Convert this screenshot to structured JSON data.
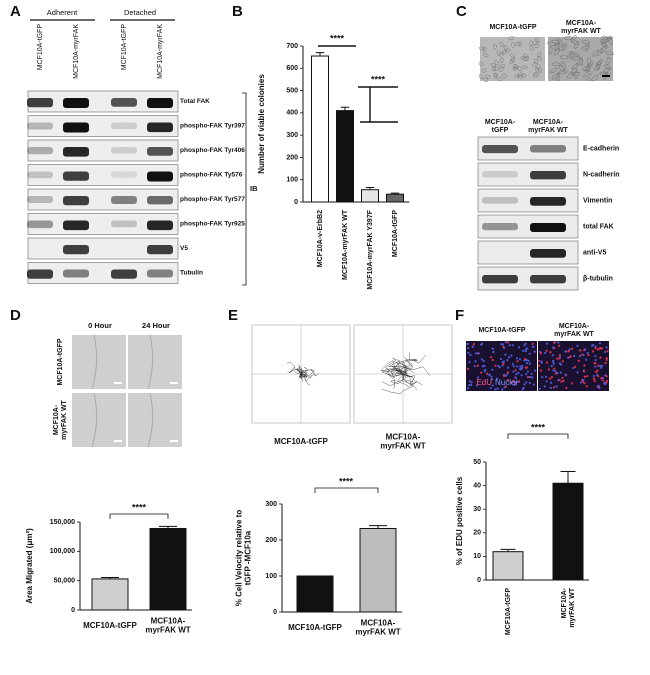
{
  "panel_labels": [
    "A",
    "B",
    "C",
    "D",
    "E",
    "F"
  ],
  "panel_a": {
    "groups": [
      "Adherent",
      "Detached"
    ],
    "lanes": [
      "MCF10A-tGFP",
      "MCF10A-myrFAK",
      "MCF10A-tGFP",
      "MCF10A-myrFAK"
    ],
    "rows": [
      "Total FAK",
      "phospho-FAK Tyr397",
      "phospho-FAK Tyr406",
      "phospho-FAK Ty576",
      "phospho-FAK Tyr577",
      "phospho-FAK Tyr925",
      "V5",
      "Tubulin"
    ],
    "bracket_label": "IB"
  },
  "panel_c": {
    "image_labels": [
      "MCF10A-tGFP",
      "MCF10A-\nmyrFAK WT"
    ],
    "lanes": [
      "MCF10A-\ntGFP",
      "MCF10A-\nmyrFAK WT"
    ],
    "rows": [
      "E-cadherin",
      "N-cadherin",
      "Vimentin",
      "total FAK",
      "anti-V5",
      "β-tubulin"
    ]
  },
  "panel_d": {
    "time_labels": [
      "0 Hour",
      "24 Hour"
    ],
    "row_labels": [
      "MCF10A-tGFP",
      "MCF10A-\nmyrFAK WT"
    ]
  },
  "panel_e": {
    "plot_labels": [
      "MCF10A-tGFP",
      "MCF10A-\nmyrFAK WT"
    ]
  },
  "panel_f": {
    "image_labels": [
      "MCF10A-tGFP",
      "MCF10A-\nmyrFAK WT"
    ],
    "stain_labels": [
      "EdU",
      "Nuclei"
    ]
  },
  "chart_data": [
    {
      "type": "bar",
      "ylabel": "Number of viable colonies",
      "categories": [
        "MCF10A-v-ErbB2",
        "MCF10A-myrFAK WT",
        "MCF10A-myrFAK Y397F",
        "MCF10A-tGFP"
      ],
      "values": [
        655,
        410,
        55,
        35
      ],
      "errors": [
        15,
        15,
        10,
        5
      ],
      "colors": [
        "#ffffff",
        "#111111",
        "#e6e6e6",
        "#666666"
      ],
      "ylim": [
        0,
        700
      ],
      "yticks": [
        0,
        100,
        200,
        300,
        400,
        500,
        600,
        700
      ],
      "annotations": [
        "****",
        "****"
      ]
    },
    {
      "type": "bar",
      "ylabel": "Area Migrated (μm²)",
      "categories": [
        "MCF10A-tGFP",
        "MCF10A-\nmyrFAK WT"
      ],
      "values": [
        53000,
        139000
      ],
      "errors": [
        2500,
        3500
      ],
      "colors": [
        "#cfcfcf",
        "#111111"
      ],
      "ylim": [
        0,
        150000
      ],
      "yticks": [
        0,
        {
          "value": 50000,
          "label": "50,000"
        },
        {
          "value": 100000,
          "label": "100,000"
        },
        {
          "value": 150000,
          "label": "150,000"
        }
      ],
      "annotations": [
        "****"
      ]
    },
    {
      "type": "bar",
      "ylabel": "% Cell Velocity relative to\ntGFP -MCF10a",
      "categories": [
        "MCF10A-tGFP",
        "MCF10A-\nmyrFAK WT"
      ],
      "values": [
        100,
        232
      ],
      "errors": [
        0,
        8
      ],
      "colors": [
        "#111111",
        "#bdbdbd"
      ],
      "ylim": [
        0,
        300
      ],
      "yticks": [
        0,
        100,
        200,
        300
      ],
      "annotations": [
        "****"
      ]
    },
    {
      "type": "bar",
      "ylabel": "% of EDU positive cells",
      "categories": [
        "MCF10A-tGFP",
        "MCF10A-\nmyrFAK WT"
      ],
      "values": [
        12,
        41
      ],
      "errors": [
        1,
        5
      ],
      "colors": [
        "#cfcfcf",
        "#111111"
      ],
      "ylim": [
        0,
        50
      ],
      "yticks": [
        0,
        10,
        20,
        30,
        40,
        50
      ],
      "annotations": [
        "****"
      ]
    }
  ]
}
